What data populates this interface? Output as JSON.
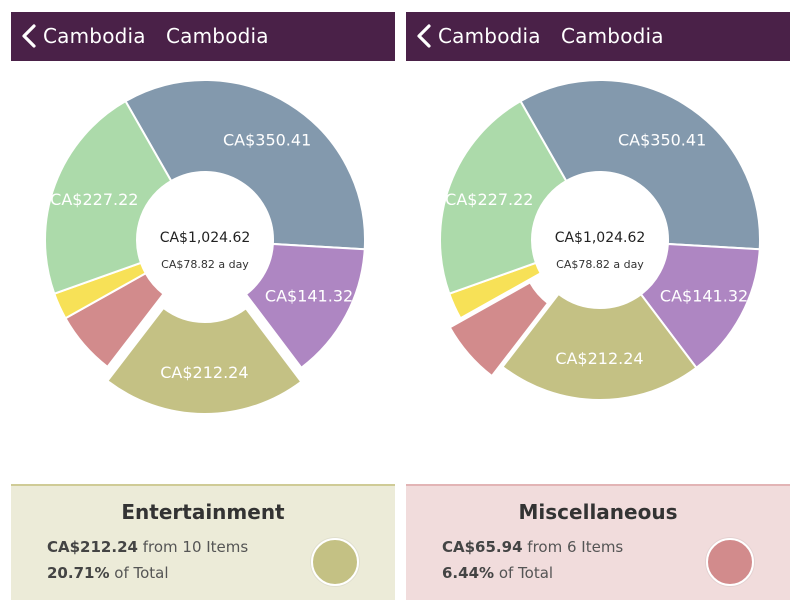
{
  "left": {
    "header": {
      "back_label": "Cambodia",
      "title": "Cambodia"
    },
    "center": {
      "total": "CA$1,024.62",
      "per_day": "CA$78.82 a day"
    },
    "card": {
      "title": "Entertainment",
      "amount": "CA$212.24",
      "items_text": "from 10 Items",
      "percent": "20.71%",
      "percent_text": "of Total",
      "color": "#c4c184",
      "background": "#ecebd8",
      "border": "#cfcb96"
    }
  },
  "right": {
    "header": {
      "back_label": "Cambodia",
      "title": "Cambodia"
    },
    "center": {
      "total": "CA$1,024.62",
      "per_day": "CA$78.82 a day"
    },
    "card": {
      "title": "Miscellaneous",
      "amount": "CA$65.94",
      "items_text": "from 6 Items",
      "percent": "6.44%",
      "percent_text": "of Total",
      "color": "#d28b8c",
      "background": "#f1dcdc",
      "border": "#e2b4b5"
    }
  },
  "chart_data": {
    "type": "pie",
    "categories": [
      "Slate",
      "Purple",
      "Entertainment",
      "Miscellaneous",
      "Yellow",
      "Green"
    ],
    "labels": [
      "CA$350.41",
      "CA$141.32",
      "CA$212.24",
      "",
      "",
      "CA$227.22"
    ],
    "values": [
      350.41,
      141.32,
      212.24,
      65.94,
      27.49,
      227.22
    ],
    "colors": [
      "#8399ad",
      "#ae86c2",
      "#c4c184",
      "#d28b8c",
      "#f7e157",
      "#acdaaa"
    ],
    "total": 1024.62,
    "exploded_left": "Entertainment",
    "exploded_right": "Miscellaneous"
  }
}
